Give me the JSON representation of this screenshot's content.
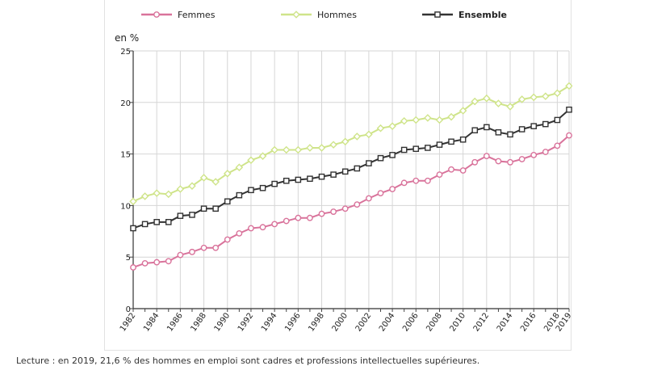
{
  "chart_data": {
    "type": "line",
    "ylabel": "en %",
    "ylim": [
      0,
      25
    ],
    "yticks": [
      "0",
      "5",
      "10",
      "15",
      "20",
      "25"
    ],
    "grid": true,
    "legend_position": "top",
    "x": [
      1982,
      1983,
      1984,
      1985,
      1986,
      1987,
      1988,
      1989,
      1990,
      1991,
      1992,
      1993,
      1994,
      1995,
      1996,
      1997,
      1998,
      1999,
      2000,
      2001,
      2002,
      2003,
      2004,
      2005,
      2006,
      2007,
      2008,
      2009,
      2010,
      2011,
      2012,
      2013,
      2014,
      2015,
      2016,
      2017,
      2018,
      2019
    ],
    "xticks": [
      "1982",
      "1984",
      "1986",
      "1988",
      "1990",
      "1992",
      "1994",
      "1996",
      "1998",
      "2000",
      "2002",
      "2004",
      "2006",
      "2008",
      "2010",
      "2012",
      "2014",
      "2016",
      "2018",
      "2019"
    ],
    "series": [
      {
        "name": "Femmes",
        "color": "#d9739b",
        "marker": "circle",
        "values": [
          4.0,
          4.4,
          4.5,
          4.6,
          5.2,
          5.5,
          5.9,
          5.9,
          6.7,
          7.3,
          7.8,
          7.9,
          8.2,
          8.5,
          8.8,
          8.8,
          9.2,
          9.4,
          9.7,
          10.1,
          10.7,
          11.2,
          11.6,
          12.2,
          12.4,
          12.4,
          13.0,
          13.5,
          13.4,
          14.2,
          14.8,
          14.3,
          14.2,
          14.5,
          14.9,
          15.2,
          15.8,
          16.8
        ]
      },
      {
        "name": "Hommes",
        "color": "#cfe48a",
        "marker": "diamond",
        "values": [
          10.4,
          10.9,
          11.2,
          11.1,
          11.6,
          11.9,
          12.7,
          12.3,
          13.1,
          13.7,
          14.4,
          14.8,
          15.4,
          15.4,
          15.4,
          15.6,
          15.6,
          15.9,
          16.2,
          16.7,
          16.9,
          17.5,
          17.7,
          18.2,
          18.3,
          18.5,
          18.3,
          18.6,
          19.2,
          20.1,
          20.4,
          19.9,
          19.6,
          20.3,
          20.5,
          20.6,
          20.9,
          21.6
        ]
      },
      {
        "name": "Ensemble",
        "color": "#333333",
        "marker": "square",
        "values": [
          7.8,
          8.2,
          8.4,
          8.4,
          9.0,
          9.1,
          9.7,
          9.7,
          10.4,
          11.0,
          11.5,
          11.7,
          12.1,
          12.4,
          12.5,
          12.6,
          12.8,
          13.0,
          13.3,
          13.6,
          14.1,
          14.6,
          14.9,
          15.4,
          15.5,
          15.6,
          15.9,
          16.2,
          16.4,
          17.3,
          17.6,
          17.1,
          16.9,
          17.4,
          17.7,
          17.9,
          18.3,
          19.3
        ]
      }
    ]
  },
  "caption": "Lecture : en 2019, 21,6 % des hommes en emploi sont cadres et professions intellectuelles supérieures."
}
